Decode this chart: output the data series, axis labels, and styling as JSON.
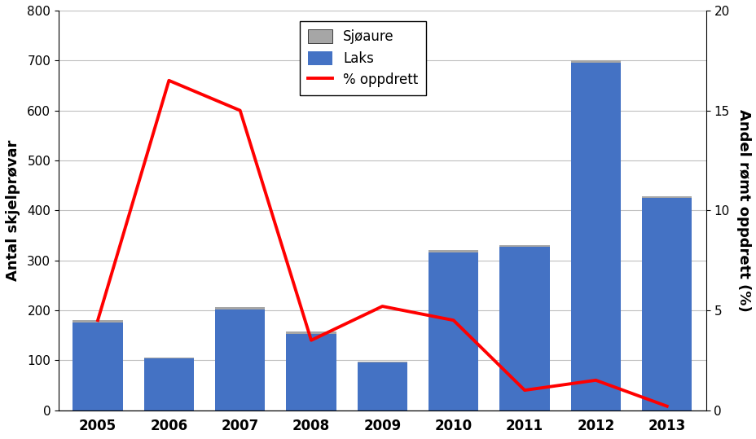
{
  "years": [
    2005,
    2006,
    2007,
    2008,
    2009,
    2010,
    2011,
    2012,
    2013
  ],
  "laks": [
    175,
    103,
    202,
    153,
    95,
    315,
    327,
    695,
    425
  ],
  "sjoaure": [
    5,
    3,
    4,
    4,
    3,
    5,
    4,
    5,
    4
  ],
  "pct_oppdrett": [
    4.5,
    16.5,
    15.0,
    3.5,
    5.2,
    4.5,
    1.0,
    1.5,
    0.2
  ],
  "laks_color": "#4472C4",
  "sjoaure_color": "#A6A6A6",
  "line_color": "#FF0000",
  "ylabel_left": "Antal skjelprøvar",
  "ylabel_right": "Andel rømt oppdrett (%)",
  "ylim_left": [
    0,
    800
  ],
  "ylim_right": [
    0,
    20
  ],
  "yticks_left": [
    0,
    100,
    200,
    300,
    400,
    500,
    600,
    700,
    800
  ],
  "yticks_right": [
    0,
    5,
    10,
    15,
    20
  ],
  "legend_sjoaure": "Sjøaure",
  "legend_laks": "Laks",
  "legend_pct": "% oppdrett",
  "bar_width": 0.7,
  "line_width": 2.8,
  "background_color": "#FFFFFF",
  "grid_color": "#BFBFBF"
}
